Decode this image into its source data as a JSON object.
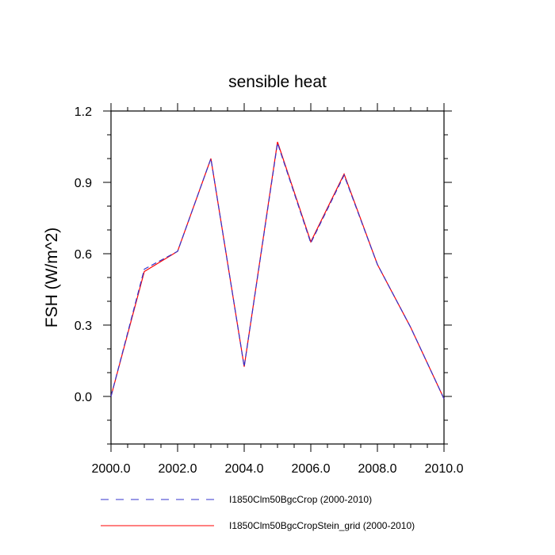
{
  "chart_data": {
    "type": "line",
    "title": "sensible heat",
    "xlabel": "",
    "ylabel": "FSH  (W/m^2)",
    "xlim": [
      2000,
      2010
    ],
    "ylim": [
      -0.2,
      1.2
    ],
    "x_ticks": [
      2000,
      2002,
      2004,
      2006,
      2008,
      2010
    ],
    "x_tick_labels": [
      "2000.0",
      "2002.0",
      "2004.0",
      "2006.0",
      "2008.0",
      "2010.0"
    ],
    "y_ticks": [
      0.0,
      0.3,
      0.6,
      0.9,
      1.2
    ],
    "y_tick_labels": [
      "0.0",
      "0.3",
      "0.6",
      "0.9",
      "1.2"
    ],
    "x": [
      2000,
      2001,
      2002,
      2003,
      2004,
      2005,
      2006,
      2007,
      2008,
      2009,
      2010
    ],
    "series": [
      {
        "name": "I1850Clm50BgcCrop (2000-2010)",
        "color": "#3333cc",
        "style": "dashed",
        "values": [
          0.0,
          0.535,
          0.61,
          1.0,
          0.125,
          1.065,
          0.645,
          0.93,
          0.555,
          0.29,
          -0.01
        ]
      },
      {
        "name": "I1850Clm50BgcCropStein_grid (2000-2010)",
        "color": "#ff0000",
        "style": "solid",
        "values": [
          0.0,
          0.525,
          0.61,
          1.0,
          0.125,
          1.07,
          0.65,
          0.935,
          0.555,
          0.29,
          -0.01
        ]
      }
    ],
    "grid": false,
    "legend_position": "bottom"
  }
}
